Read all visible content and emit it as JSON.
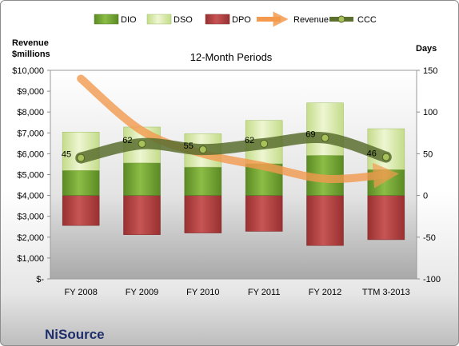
{
  "chart_data": {
    "type": "bar",
    "title": "12-Month Periods",
    "company": "NiSource",
    "left_axis_title": [
      "Revenue",
      "$millions"
    ],
    "right_axis_title": "Days",
    "left_ticks": [
      "$10,000",
      "$9,000",
      "$8,000",
      "$7,000",
      "$6,000",
      "$5,000",
      "$4,000",
      "$3,000",
      "$2,000",
      "$1,000",
      "$-"
    ],
    "right_ticks": [
      "150",
      "100",
      "50",
      "0",
      "-50",
      "-100"
    ],
    "left_ylim": [
      0,
      10000
    ],
    "right_ylim": [
      -100,
      150
    ],
    "categories": [
      "FY 2008",
      "FY 2009",
      "FY 2010",
      "FY 2011",
      "FY 2012",
      "TTM 3-2013"
    ],
    "legend": [
      "DIO",
      "DSO",
      "DPO",
      "Revenue",
      "CCC"
    ],
    "series": [
      {
        "name": "DIO",
        "axis": "right",
        "stacked": true,
        "values": [
          30,
          39,
          34,
          38,
          48,
          31
        ],
        "color": "#6e9e2e"
      },
      {
        "name": "DSO",
        "axis": "right",
        "stacked": true,
        "values": [
          46,
          43,
          40,
          52,
          63,
          49
        ],
        "color": "#d7e9a5"
      },
      {
        "name": "DPO",
        "axis": "right",
        "stacked": false,
        "values": [
          -36,
          -47,
          -45,
          -43,
          -60,
          -53
        ],
        "color": "#b23b3b"
      },
      {
        "name": "Revenue",
        "axis": "left",
        "type": "line",
        "values": [
          9600,
          7100,
          6000,
          5400,
          4800,
          5000
        ],
        "color": "#f39a4e"
      },
      {
        "name": "CCC",
        "axis": "right",
        "type": "line",
        "values": [
          45,
          62,
          55,
          62,
          69,
          46
        ],
        "labels": [
          "45",
          "62",
          "55",
          "62",
          "69",
          "46"
        ],
        "color": "#5b6f2f"
      }
    ],
    "legend_position": "top",
    "grid": false
  }
}
